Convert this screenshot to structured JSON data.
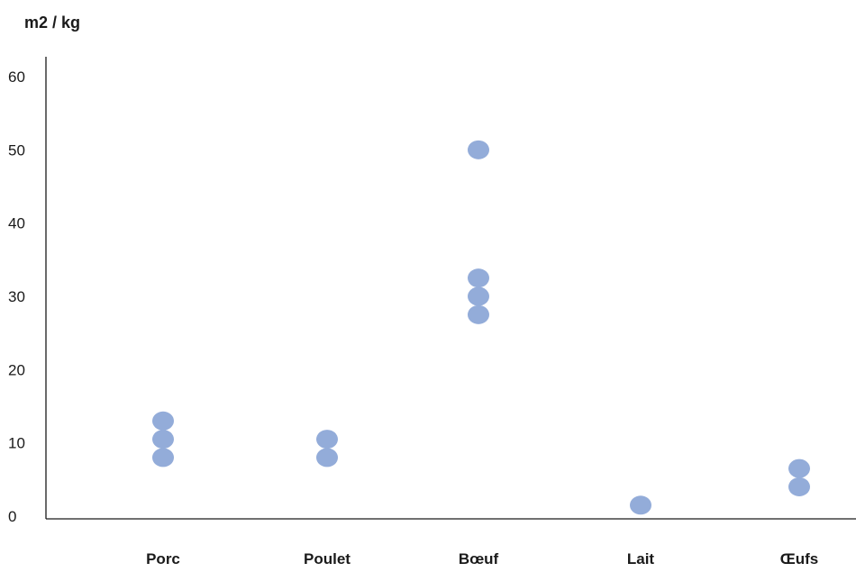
{
  "chart_data": {
    "type": "scatter",
    "title": "",
    "xlabel": "",
    "ylabel": "m2 / kg",
    "ylim": [
      0,
      60
    ],
    "yticks": [
      0,
      10,
      20,
      30,
      40,
      50,
      60
    ],
    "categories": [
      "Porc",
      "Poulet",
      "Bœuf",
      "Lait",
      "Œufs"
    ],
    "grid": false,
    "legend": "none",
    "marker_color": "#93acd9",
    "axis_color": "#1a1a1a",
    "points": [
      {
        "category": "Porc",
        "y": 13
      },
      {
        "category": "Porc",
        "y": 10.5
      },
      {
        "category": "Porc",
        "y": 8
      },
      {
        "category": "Poulet",
        "y": 10.5
      },
      {
        "category": "Poulet",
        "y": 8
      },
      {
        "category": "Bœuf",
        "y": 50
      },
      {
        "category": "Bœuf",
        "y": 32.5
      },
      {
        "category": "Bœuf",
        "y": 30
      },
      {
        "category": "Bœuf",
        "y": 27.5
      },
      {
        "category": "Lait",
        "y": 1.5
      },
      {
        "category": "Œufs",
        "y": 6.5
      },
      {
        "category": "Œufs",
        "y": 4
      }
    ]
  }
}
